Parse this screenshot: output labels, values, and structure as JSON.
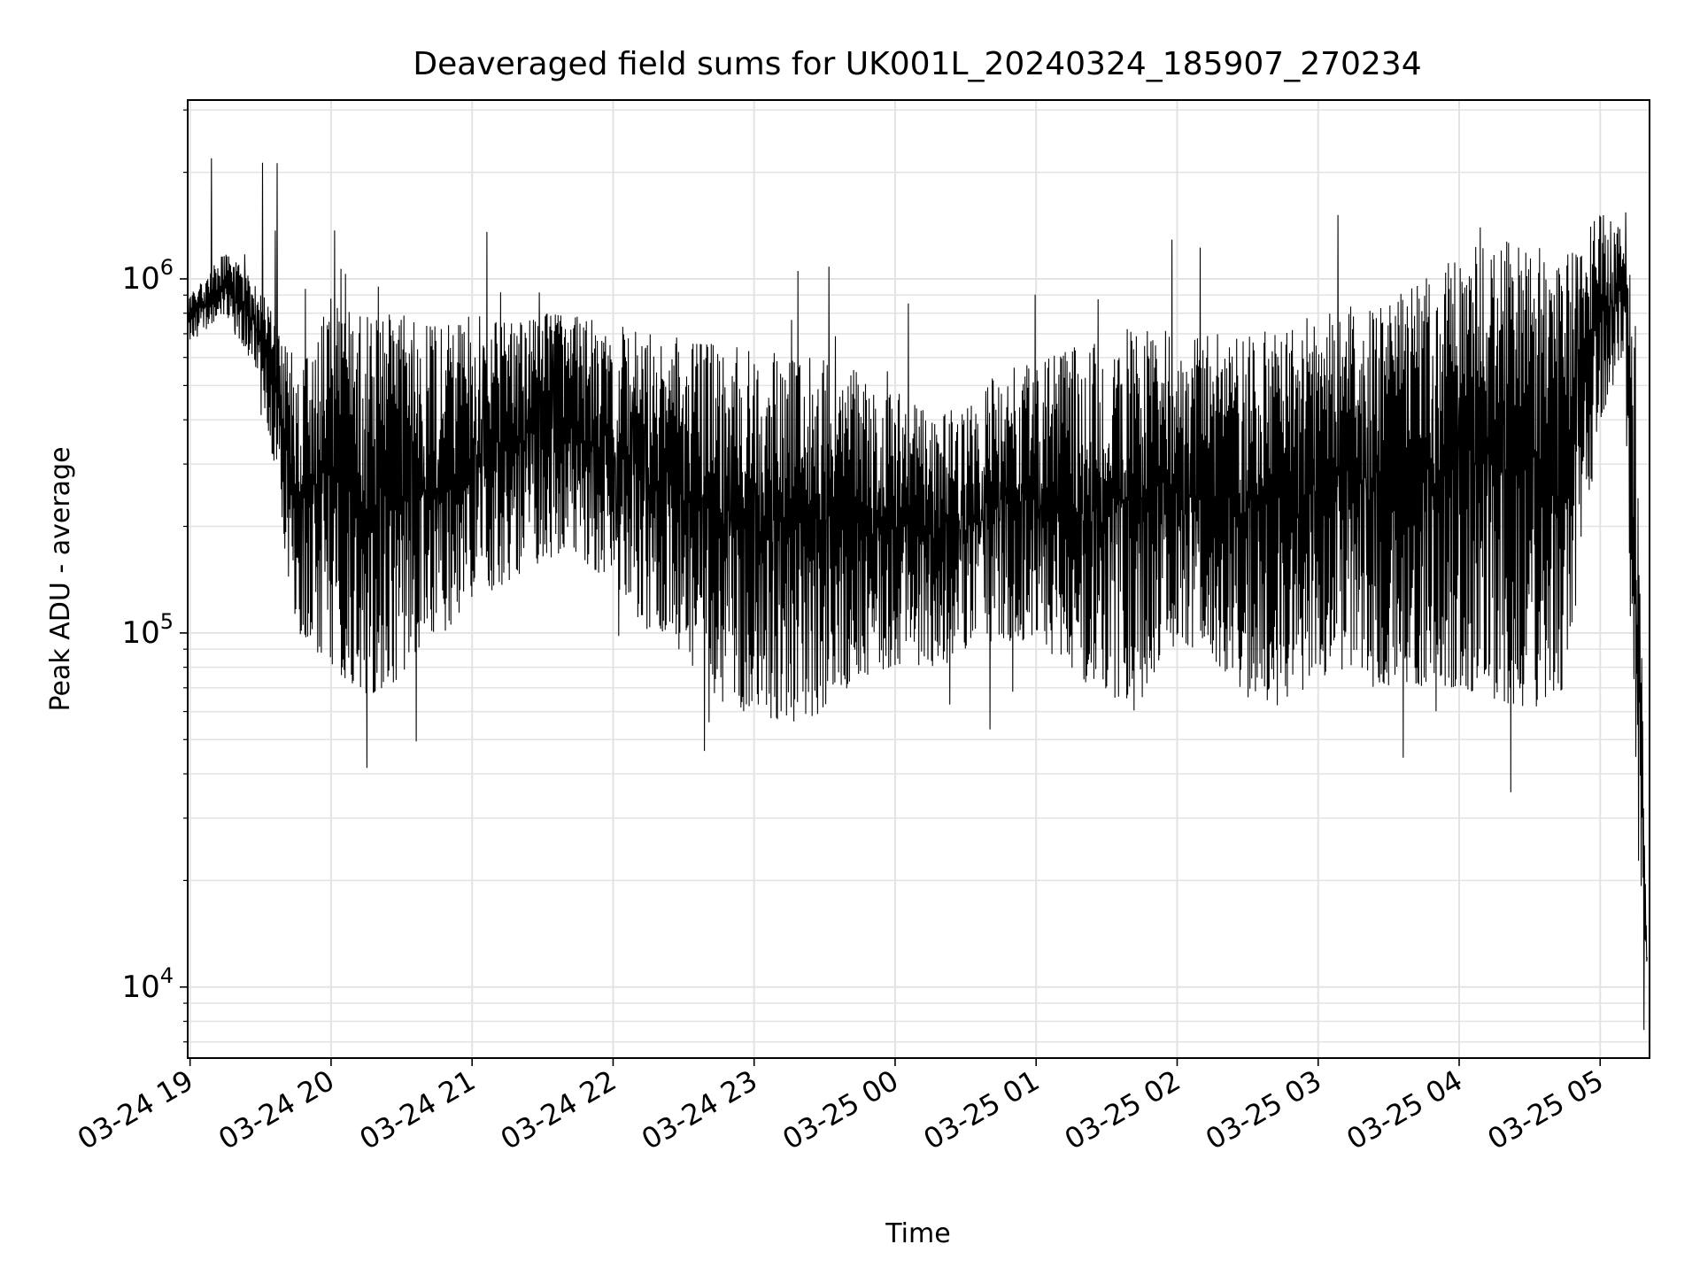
{
  "chart_data": {
    "type": "line",
    "title": "Deaveraged field sums for UK001L_20240324_185907_270234",
    "xlabel": "Time",
    "ylabel": "Peak ADU - average",
    "yscale": "log",
    "ylim": [
      6300,
      3200000
    ],
    "xlim": [
      "2024-03-24 18:59",
      "2024-03-25 05:21"
    ],
    "grid": true,
    "legend": "none",
    "line_color": "#000000",
    "grid_color": "#e3e3e3",
    "y_ticks": [
      {
        "value": 10000,
        "base": "10",
        "exp": "4"
      },
      {
        "value": 100000,
        "base": "10",
        "exp": "5"
      },
      {
        "value": 1000000,
        "base": "10",
        "exp": "6"
      }
    ],
    "x_ticks": [
      {
        "value": "2024-03-24 19:00",
        "label": "03-24 19"
      },
      {
        "value": "2024-03-24 20:00",
        "label": "03-24 20"
      },
      {
        "value": "2024-03-24 21:00",
        "label": "03-24 21"
      },
      {
        "value": "2024-03-24 22:00",
        "label": "03-24 22"
      },
      {
        "value": "2024-03-24 23:00",
        "label": "03-24 23"
      },
      {
        "value": "2024-03-25 00:00",
        "label": "03-25 00"
      },
      {
        "value": "2024-03-25 01:00",
        "label": "03-25 01"
      },
      {
        "value": "2024-03-25 02:00",
        "label": "03-25 02"
      },
      {
        "value": "2024-03-25 03:00",
        "label": "03-25 03"
      },
      {
        "value": "2024-03-25 04:00",
        "label": "03-25 04"
      },
      {
        "value": "2024-03-25 05:00",
        "label": "03-25 05"
      }
    ],
    "series": [
      {
        "x": [
          "2024-03-24 19:00",
          "2024-03-24 19:15",
          "2024-03-24 19:30",
          "2024-03-24 19:45",
          "2024-03-24 20:00",
          "2024-03-24 20:15",
          "2024-03-24 20:30",
          "2024-03-24 20:45",
          "2024-03-24 21:00",
          "2024-03-24 21:15",
          "2024-03-24 21:30",
          "2024-03-24 21:45",
          "2024-03-24 22:00",
          "2024-03-24 22:15",
          "2024-03-24 22:30",
          "2024-03-24 22:45",
          "2024-03-24 23:00",
          "2024-03-24 23:15",
          "2024-03-24 23:30",
          "2024-03-24 23:45",
          "2024-03-25 00:00",
          "2024-03-25 00:15",
          "2024-03-25 00:30",
          "2024-03-25 00:45",
          "2024-03-25 01:00",
          "2024-03-25 01:15",
          "2024-03-25 01:30",
          "2024-03-25 01:45",
          "2024-03-25 02:00",
          "2024-03-25 02:15",
          "2024-03-25 02:30",
          "2024-03-25 02:45",
          "2024-03-25 03:00",
          "2024-03-25 03:15",
          "2024-03-25 03:30",
          "2024-03-25 03:45",
          "2024-03-25 04:00",
          "2024-03-25 04:15",
          "2024-03-25 04:30",
          "2024-03-25 04:45",
          "2024-03-25 05:00",
          "2024-03-25 05:10",
          "2024-03-25 05:15",
          "2024-03-25 05:20"
        ],
        "low": [
          660000,
          800000,
          520000,
          100000,
          80000,
          65000,
          75000,
          95000,
          120000,
          140000,
          160000,
          160000,
          140000,
          100000,
          85000,
          60000,
          60000,
          55000,
          60000,
          75000,
          80000,
          80000,
          90000,
          95000,
          90000,
          75000,
          65000,
          65000,
          95000,
          85000,
          65000,
          60000,
          75000,
          80000,
          70000,
          70000,
          70000,
          65000,
          60000,
          70000,
          400000,
          600000,
          30000,
          9000
        ],
        "high": [
          900000,
          1200000,
          950000,
          650000,
          900000,
          800000,
          800000,
          750000,
          800000,
          750000,
          800000,
          800000,
          750000,
          700000,
          680000,
          650000,
          650000,
          600000,
          600000,
          550000,
          480000,
          430000,
          450000,
          550000,
          600000,
          640000,
          700000,
          750000,
          720000,
          700000,
          700000,
          750000,
          800000,
          850000,
          880000,
          1000000,
          1200000,
          1300000,
          1250000,
          1200000,
          1600000,
          1400000,
          800000,
          14000
        ]
      }
    ]
  }
}
